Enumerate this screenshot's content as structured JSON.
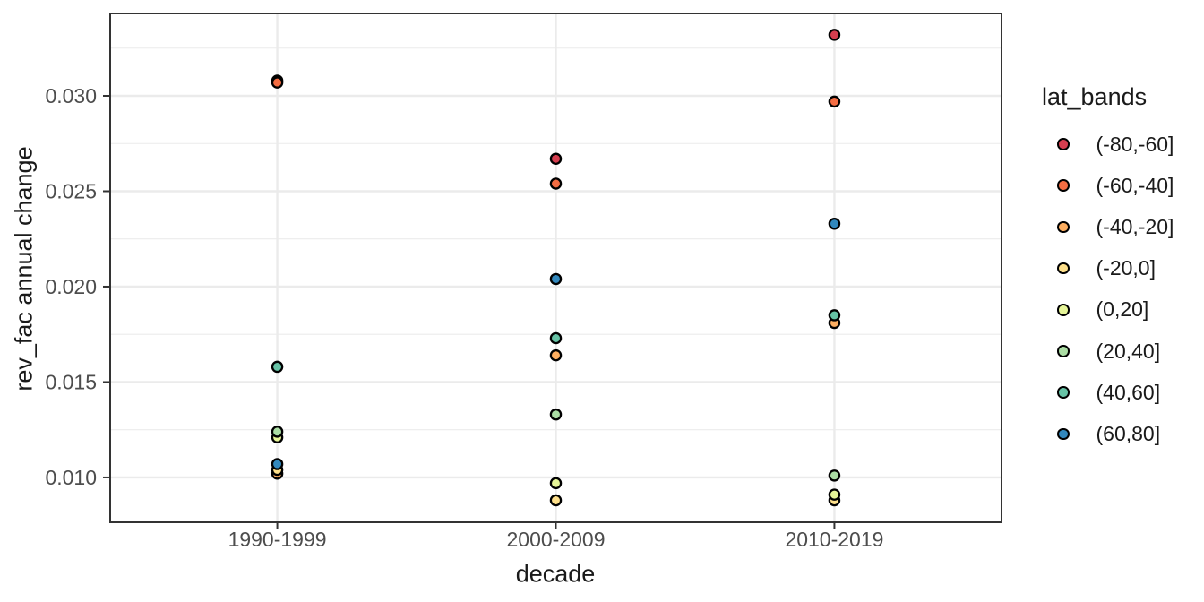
{
  "chart_data": {
    "type": "scatter",
    "xlabel": "decade",
    "ylabel": "rev_fac annual change",
    "legend_title": "lat_bands",
    "legend_position": "right",
    "categories": [
      "1990-1999",
      "2000-2009",
      "2010-2019"
    ],
    "y_ticks": [
      0.01,
      0.015,
      0.02,
      0.025,
      0.03
    ],
    "y_tick_labels": [
      "0.010",
      "0.015",
      "0.020",
      "0.025",
      "0.030"
    ],
    "ylim": [
      0.00765,
      0.03432
    ],
    "grid": "major and minor horizontal, major vertical",
    "series": [
      {
        "name": "(-80,-60]",
        "color": "#d53e4f",
        "values": [
          0.0308,
          0.0267,
          0.0332
        ]
      },
      {
        "name": "(-60,-40]",
        "color": "#f46d43",
        "values": [
          0.0307,
          0.0254,
          0.0297
        ]
      },
      {
        "name": "(-40,-20]",
        "color": "#fdae61",
        "values": [
          0.0102,
          0.0164,
          0.0181
        ]
      },
      {
        "name": "(-20,0]",
        "color": "#fee08b",
        "values": [
          0.0104,
          0.0088,
          0.0088
        ]
      },
      {
        "name": "(0,20]",
        "color": "#e6f598",
        "values": [
          0.0121,
          0.0097,
          0.0091
        ]
      },
      {
        "name": "(20,40]",
        "color": "#abdda4",
        "values": [
          0.0124,
          0.0133,
          0.0101
        ]
      },
      {
        "name": "(40,60]",
        "color": "#66c2a5",
        "values": [
          0.0158,
          0.0173,
          0.0185
        ]
      },
      {
        "name": "(60,80]",
        "color": "#3288bd",
        "values": [
          0.0107,
          0.0204,
          0.0233
        ]
      }
    ],
    "style": {
      "grid_color": "#ebebeb",
      "panel_border_color": "#333333",
      "tick_color": "#333333",
      "tick_label_color": "#4d4d4d",
      "title_color": "#1a1a1a",
      "point_stroke": "#000000"
    }
  }
}
